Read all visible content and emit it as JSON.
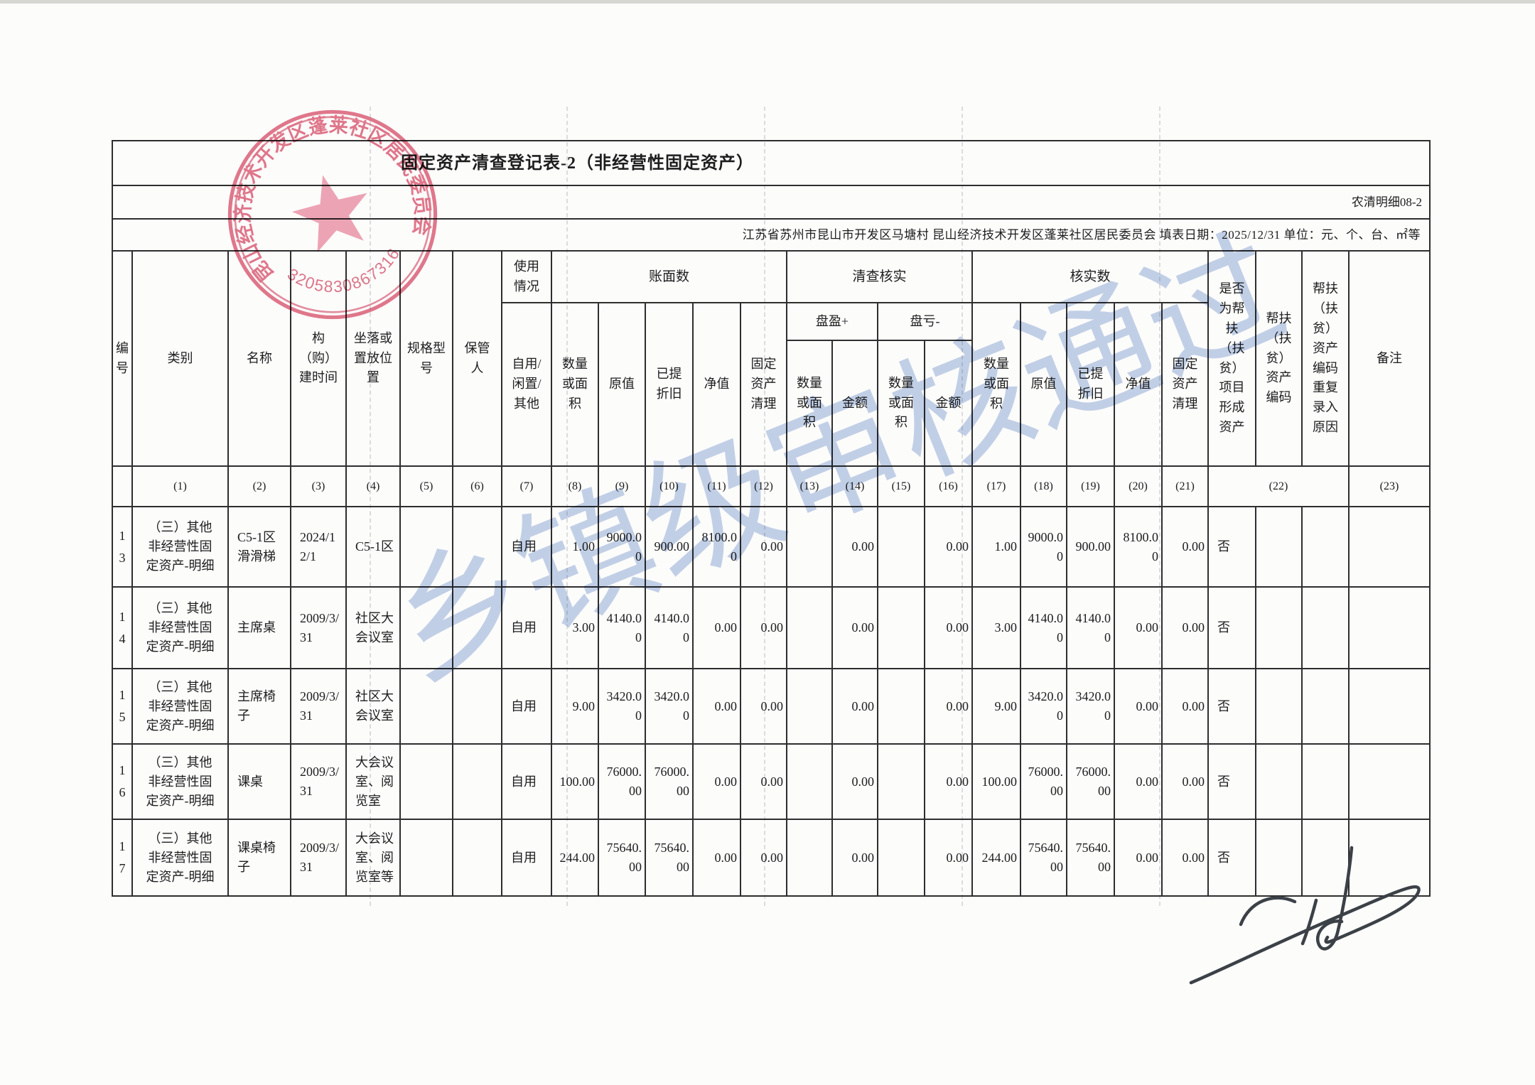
{
  "document": {
    "title": "固定资产清查登记表-2（非经营性固定资产）",
    "form_code": "农清明细08-2",
    "info_line": "江苏省苏州市昆山市开发区马塘村 昆山经济技术开发区蓬莱社区居民委员会  填表日期：2025/12/31  单位：元、个、台、㎡等"
  },
  "stamp": {
    "ring_text": "昆山经济技术开发区蓬莱社区居民委员会",
    "number": "3205830867316",
    "color": "#dd5f78"
  },
  "watermark": {
    "text": "乡镇级审核通过",
    "color": "#8aa6d6"
  },
  "header": {
    "no": "编号",
    "category": "类别",
    "name": "名称",
    "build_time": "构（购）建时间",
    "location": "坐落或置放位置",
    "spec": "规格型号",
    "keeper": "保管人",
    "usage_group": "使用情况",
    "usage_options": "自用/闲置/其他",
    "book_group": "账面数",
    "check_group": "清查核实",
    "verify_group": "核实数",
    "qty": "数量或面积",
    "orig_value": "原值",
    "depreciated": "已提折旧",
    "net_value": "净值",
    "asset_disposal": "固定资产清理",
    "surplus": "盘盈+",
    "shortage": "盘亏-",
    "amount": "金额",
    "is_aid_asset": "是否为帮扶（扶贫）项目形成资产",
    "aid_code": "帮扶（扶贫）资产编码",
    "aid_code_dup_reason": "帮扶（扶贫）资产编码重复录入原因",
    "remark": "备注"
  },
  "col_nums": [
    "",
    "(1)",
    "(2)",
    "(3)",
    "(4)",
    "(5)",
    "(6)",
    "(7)",
    "(8)",
    "(9)",
    "(10)",
    "(11)",
    "(12)",
    "(13)",
    "(14)",
    "(15)",
    "(16)",
    "(17)",
    "(18)",
    "(19)",
    "(20)",
    "(21)",
    "(22)",
    "(23)"
  ],
  "rows": [
    [
      "13",
      "（三）其他非经营性固定资产-明细",
      "C5-1区滑滑梯",
      "2024/12/1",
      "C5-1区",
      "",
      "",
      "自用",
      "1.00",
      "9000.00",
      "900.00",
      "8100.00",
      "0.00",
      "",
      "0.00",
      "",
      "0.00",
      "1.00",
      "9000.00",
      "900.00",
      "8100.00",
      "0.00",
      "否",
      "",
      "",
      ""
    ],
    [
      "14",
      "（三）其他非经营性固定资产-明细",
      "主席桌",
      "2009/3/31",
      "社区大会议室",
      "",
      "",
      "自用",
      "3.00",
      "4140.00",
      "4140.00",
      "0.00",
      "0.00",
      "",
      "0.00",
      "",
      "0.00",
      "3.00",
      "4140.00",
      "4140.00",
      "0.00",
      "0.00",
      "否",
      "",
      "",
      ""
    ],
    [
      "15",
      "（三）其他非经营性固定资产-明细",
      "主席椅子",
      "2009/3/31",
      "社区大会议室",
      "",
      "",
      "自用",
      "9.00",
      "3420.00",
      "3420.00",
      "0.00",
      "0.00",
      "",
      "0.00",
      "",
      "0.00",
      "9.00",
      "3420.00",
      "3420.00",
      "0.00",
      "0.00",
      "否",
      "",
      "",
      ""
    ],
    [
      "16",
      "（三）其他非经营性固定资产-明细",
      "课桌",
      "2009/3/31",
      "大会议室、阅览室",
      "",
      "",
      "自用",
      "100.00",
      "76000.00",
      "76000.00",
      "0.00",
      "0.00",
      "",
      "0.00",
      "",
      "0.00",
      "100.00",
      "76000.00",
      "76000.00",
      "0.00",
      "0.00",
      "否",
      "",
      "",
      ""
    ],
    [
      "17",
      "（三）其他非经营性固定资产-明细",
      "课桌椅子",
      "2009/3/31",
      "大会议室、阅览室等",
      "",
      "",
      "自用",
      "244.00",
      "75640.00",
      "75640.00",
      "0.00",
      "0.00",
      "",
      "0.00",
      "",
      "0.00",
      "244.00",
      "75640.00",
      "75640.00",
      "0.00",
      "0.00",
      "否",
      "",
      "",
      ""
    ]
  ]
}
